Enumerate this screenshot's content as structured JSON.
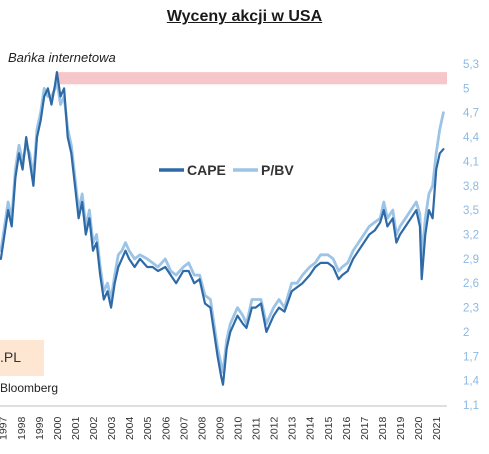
{
  "chart_data": {
    "type": "line",
    "title": "Wyceny akcji w USA",
    "band_label": "Bańka internetowa",
    "source_label": "Bloomberg",
    "logo_text": ".PL",
    "colors": {
      "CAPE": "#2f6aa6",
      "P/BV": "#9cc4e6",
      "band": "#f6c7c9",
      "ytick": "#8db9e3"
    },
    "y_ticks": [
      "1,1",
      "1,4",
      "1,7",
      "2",
      "2,3",
      "2,6",
      "2,9",
      "3,2",
      "3,5",
      "3,8",
      "4,1",
      "4,4",
      "4,7",
      "5",
      "5,3"
    ],
    "ylim": [
      1.1,
      5.3
    ],
    "x_ticks": [
      "1997",
      "1998",
      "1999",
      "2000",
      "2001",
      "2002",
      "2003",
      "2004",
      "2005",
      "2006",
      "2007",
      "2008",
      "2009",
      "2010",
      "2011",
      "2012",
      "2013",
      "2014",
      "2015",
      "2016",
      "2017",
      "2018",
      "2019",
      "2020",
      "2021"
    ],
    "xlim": [
      1996.85,
      2021.6
    ],
    "band": {
      "x": [
        1999.95,
        2021.6
      ],
      "y": [
        5.05,
        5.2
      ]
    },
    "series": [
      {
        "name": "CAPE",
        "x": [
          1996.9,
          1997.1,
          1997.3,
          1997.5,
          1997.7,
          1997.9,
          1998.1,
          1998.3,
          1998.5,
          1998.7,
          1998.9,
          1999.1,
          1999.3,
          1999.5,
          1999.7,
          1999.9,
          2000.0,
          2000.2,
          2000.4,
          2000.6,
          2000.8,
          2001.0,
          2001.2,
          2001.4,
          2001.6,
          2001.8,
          2002.0,
          2002.2,
          2002.4,
          2002.6,
          2002.8,
          2003.0,
          2003.2,
          2003.4,
          2003.6,
          2003.8,
          2004.0,
          2004.3,
          2004.6,
          2005.0,
          2005.3,
          2005.6,
          2006.0,
          2006.3,
          2006.6,
          2007.0,
          2007.3,
          2007.6,
          2007.9,
          2008.2,
          2008.5,
          2008.7,
          2008.9,
          2009.1,
          2009.2,
          2009.4,
          2009.6,
          2009.8,
          2010.0,
          2010.3,
          2010.5,
          2010.8,
          2011.0,
          2011.3,
          2011.6,
          2011.8,
          2012.0,
          2012.3,
          2012.6,
          2013.0,
          2013.3,
          2013.6,
          2014.0,
          2014.3,
          2014.6,
          2015.0,
          2015.3,
          2015.6,
          2015.8,
          2016.1,
          2016.4,
          2016.7,
          2017.0,
          2017.3,
          2017.6,
          2017.9,
          2018.1,
          2018.3,
          2018.6,
          2018.8,
          2019.0,
          2019.3,
          2019.6,
          2019.9,
          2020.1,
          2020.2,
          2020.4,
          2020.6,
          2020.8,
          2021.0,
          2021.2,
          2021.4
        ],
        "values": [
          2.9,
          3.2,
          3.5,
          3.3,
          3.9,
          4.2,
          4.0,
          4.4,
          4.1,
          3.8,
          4.4,
          4.6,
          4.9,
          5.0,
          4.8,
          5.05,
          5.2,
          4.9,
          5.0,
          4.4,
          4.2,
          3.8,
          3.4,
          3.6,
          3.2,
          3.4,
          3.0,
          3.1,
          2.7,
          2.4,
          2.5,
          2.3,
          2.6,
          2.8,
          2.9,
          3.0,
          2.9,
          2.8,
          2.9,
          2.8,
          2.8,
          2.75,
          2.8,
          2.7,
          2.6,
          2.75,
          2.75,
          2.6,
          2.65,
          2.35,
          2.3,
          2.0,
          1.7,
          1.45,
          1.35,
          1.8,
          2.0,
          2.1,
          2.2,
          2.1,
          2.05,
          2.3,
          2.3,
          2.35,
          2.0,
          2.1,
          2.2,
          2.3,
          2.25,
          2.5,
          2.55,
          2.6,
          2.7,
          2.8,
          2.85,
          2.85,
          2.8,
          2.65,
          2.7,
          2.75,
          2.9,
          3.0,
          3.1,
          3.2,
          3.25,
          3.35,
          3.5,
          3.3,
          3.4,
          3.1,
          3.2,
          3.3,
          3.4,
          3.5,
          3.3,
          2.65,
          3.2,
          3.5,
          3.4,
          4.0,
          4.2,
          4.25
        ]
      },
      {
        "name": "P/BV",
        "x": [
          1996.9,
          1997.1,
          1997.3,
          1997.5,
          1997.7,
          1997.9,
          1998.1,
          1998.3,
          1998.5,
          1998.7,
          1998.9,
          1999.1,
          1999.3,
          1999.5,
          1999.7,
          1999.9,
          2000.0,
          2000.2,
          2000.4,
          2000.6,
          2000.8,
          2001.0,
          2001.2,
          2001.4,
          2001.6,
          2001.8,
          2002.0,
          2002.2,
          2002.4,
          2002.6,
          2002.8,
          2003.0,
          2003.2,
          2003.4,
          2003.6,
          2003.8,
          2004.0,
          2004.3,
          2004.6,
          2005.0,
          2005.3,
          2005.6,
          2006.0,
          2006.3,
          2006.6,
          2007.0,
          2007.3,
          2007.6,
          2007.9,
          2008.2,
          2008.5,
          2008.7,
          2008.9,
          2009.1,
          2009.2,
          2009.4,
          2009.6,
          2009.8,
          2010.0,
          2010.3,
          2010.5,
          2010.8,
          2011.0,
          2011.3,
          2011.6,
          2011.8,
          2012.0,
          2012.3,
          2012.6,
          2013.0,
          2013.3,
          2013.6,
          2014.0,
          2014.3,
          2014.6,
          2015.0,
          2015.3,
          2015.6,
          2015.8,
          2016.1,
          2016.4,
          2016.7,
          2017.0,
          2017.3,
          2017.6,
          2017.9,
          2018.1,
          2018.3,
          2018.6,
          2018.8,
          2019.0,
          2019.3,
          2019.6,
          2019.9,
          2020.1,
          2020.2,
          2020.4,
          2020.6,
          2020.8,
          2021.0,
          2021.2,
          2021.4
        ],
        "values": [
          3.0,
          3.3,
          3.6,
          3.4,
          4.0,
          4.3,
          4.1,
          4.3,
          4.2,
          3.9,
          4.5,
          4.7,
          5.0,
          4.9,
          4.9,
          5.0,
          5.1,
          4.8,
          4.9,
          4.5,
          4.3,
          3.9,
          3.5,
          3.7,
          3.3,
          3.5,
          3.1,
          3.2,
          2.8,
          2.5,
          2.6,
          2.4,
          2.7,
          2.95,
          3.0,
          3.1,
          3.0,
          2.9,
          2.95,
          2.9,
          2.85,
          2.8,
          2.9,
          2.75,
          2.7,
          2.8,
          2.85,
          2.7,
          2.7,
          2.45,
          2.4,
          2.1,
          1.8,
          1.6,
          1.5,
          1.9,
          2.1,
          2.2,
          2.3,
          2.2,
          2.1,
          2.4,
          2.4,
          2.4,
          2.1,
          2.2,
          2.3,
          2.4,
          2.3,
          2.6,
          2.6,
          2.7,
          2.8,
          2.85,
          2.95,
          2.95,
          2.9,
          2.75,
          2.8,
          2.85,
          3.0,
          3.1,
          3.2,
          3.3,
          3.35,
          3.4,
          3.6,
          3.4,
          3.5,
          3.2,
          3.3,
          3.4,
          3.5,
          3.6,
          3.45,
          2.9,
          3.4,
          3.7,
          3.8,
          4.2,
          4.5,
          4.7
        ]
      }
    ]
  }
}
